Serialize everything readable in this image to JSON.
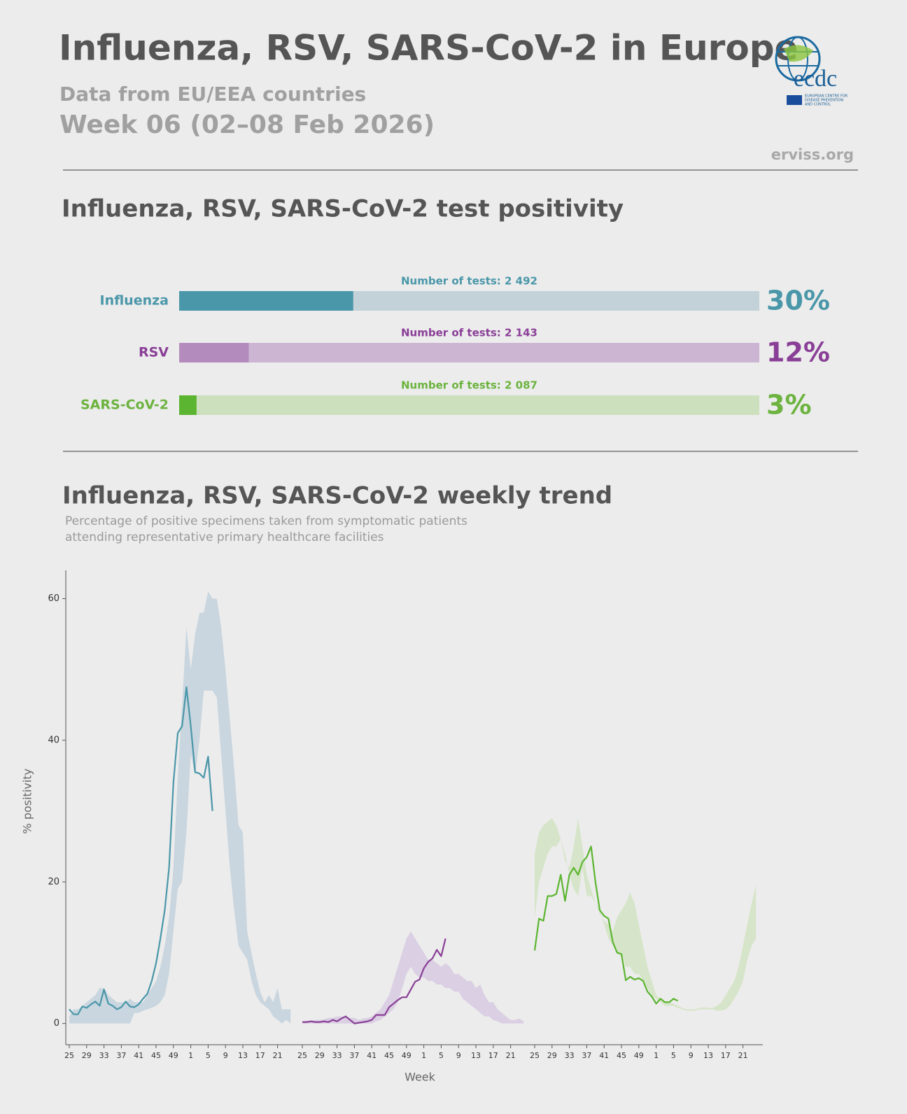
{
  "header": {
    "title": "Influenza, RSV, SARS-CoV-2 in Europe",
    "subtitle": "Data from EU/EEA countries",
    "week": "Week 06 (02–08 Feb 2026)",
    "source": "erviss.org",
    "logo_name": "ecdc",
    "logo_caption": [
      "EUROPEAN CENTRE FOR",
      "DISEASE PREVENTION",
      "AND CONTROL"
    ]
  },
  "chart_data": [
    {
      "type": "hbar",
      "title": "Influenza, RSV, SARS-CoV-2 test positivity",
      "categories": [
        "Influenza",
        "RSV",
        "SARS-CoV-2"
      ],
      "values": [
        30,
        12,
        3
      ],
      "value_labels": [
        "30%",
        "12%",
        "3%"
      ],
      "annotations": [
        "Number of tests: 2 492",
        "Number of tests: 2 143",
        "Number of tests: 2 087"
      ],
      "colors": [
        "#4a97a9",
        "#b48bbd",
        "#5cb531"
      ],
      "label_colors": [
        "#4a97a9",
        "#8a3f97",
        "#6cb33f"
      ],
      "track_colors": [
        "#c3d1d9",
        "#cbb5d3",
        "#cde0bd"
      ],
      "xlim": [
        0,
        100
      ]
    },
    {
      "type": "line",
      "title": "Influenza, RSV, SARS-CoV-2 weekly trend",
      "subtitle": [
        "Percentage of positive specimens taken from symptomatic patients",
        "attending representative primary healthcare facilities"
      ],
      "xlabel": "Week",
      "ylabel": "% positivity",
      "categories": [
        25,
        null,
        null,
        null,
        29,
        null,
        null,
        null,
        33,
        null,
        null,
        null,
        37,
        null,
        null,
        null,
        41,
        null,
        null,
        null,
        45,
        null,
        null,
        null,
        49,
        null,
        null,
        null,
        1,
        null,
        null,
        null,
        5,
        null,
        null,
        null,
        9,
        null,
        null,
        null,
        13,
        null,
        null,
        null,
        17,
        null,
        null,
        null,
        21,
        null,
        null,
        null
      ],
      "ylim": [
        -3,
        64
      ],
      "yticks": [
        0,
        20,
        40,
        60
      ],
      "series": [
        {
          "color": "#4a97a9",
          "band_color": "#c9d6df",
          "values": [
            2,
            1.3,
            1.3,
            2.4,
            2.2,
            2.7,
            3.1,
            2.5,
            4.8,
            2.8,
            2.5,
            2,
            2.3,
            3.1,
            2.4,
            2.3,
            2.7,
            3.5,
            4.2,
            6,
            8.5,
            12,
            16,
            22,
            34,
            41,
            42,
            47.5,
            42,
            35.5,
            35.3,
            34.7,
            37.7,
            30,
            null,
            null,
            null,
            null,
            null,
            null,
            null,
            null,
            null,
            null,
            null,
            null,
            null,
            null,
            null,
            null,
            null,
            null
          ],
          "band_lower": [
            0,
            0,
            0,
            0,
            0,
            0,
            0,
            0,
            0,
            0,
            0,
            0,
            0,
            0,
            0,
            1.5,
            1.5,
            1.8,
            2,
            2.2,
            2.5,
            3,
            4,
            7,
            13,
            19,
            20,
            27,
            38,
            35,
            40,
            47,
            47,
            47,
            46,
            38,
            30,
            22,
            16,
            11,
            10,
            9,
            6,
            4,
            3,
            2.5,
            2,
            1,
            0.5,
            0,
            0.5,
            0
          ],
          "band_upper": [
            1,
            2,
            2,
            2.5,
            3,
            3.5,
            4,
            5,
            5,
            4,
            3.5,
            3,
            3,
            3,
            3.5,
            3,
            3,
            3,
            4,
            5,
            6,
            8,
            11,
            15,
            22,
            35,
            45,
            56,
            50,
            55,
            58,
            58,
            61,
            60,
            60,
            56,
            50,
            43,
            36,
            28,
            27,
            13,
            10,
            7,
            4.5,
            3,
            4,
            3,
            5,
            2,
            2,
            2
          ]
        },
        {
          "color": "#8a3f97",
          "band_color": "#dacfe3",
          "values": [
            0.2,
            0.2,
            0.3,
            0.2,
            0.2,
            0.3,
            0.2,
            0.5,
            0.3,
            0.7,
            1,
            0.5,
            0,
            0.1,
            0.2,
            0.3,
            0.5,
            1.2,
            1.2,
            1.2,
            2.3,
            2.8,
            3.3,
            3.7,
            3.7,
            4.8,
            5.9,
            6.2,
            7.8,
            8.7,
            9.2,
            10.4,
            9.5,
            12,
            null,
            null,
            null,
            null,
            null,
            null,
            null,
            null,
            null,
            null,
            null,
            null,
            null,
            null,
            null,
            null,
            null,
            null
          ],
          "band_lower": [
            0,
            0,
            0,
            0,
            0,
            0,
            0,
            0,
            0,
            0,
            0,
            0,
            0,
            0,
            0,
            0,
            0,
            0.3,
            0.5,
            1,
            1.5,
            2,
            3,
            5,
            7,
            8,
            7,
            6.5,
            6.5,
            6,
            6,
            5.5,
            5.5,
            5,
            5,
            4.5,
            4.5,
            3.5,
            3,
            2.5,
            2,
            1.5,
            1,
            1,
            0.5,
            0.3,
            0,
            0,
            0,
            0,
            0,
            0
          ],
          "band_upper": [
            0.3,
            0.4,
            0.4,
            0.5,
            0.5,
            0.6,
            0.8,
            0.8,
            1,
            1,
            1,
            0.8,
            0.8,
            0.5,
            0.7,
            0.8,
            1,
            1.5,
            2,
            3,
            4,
            6,
            8,
            10,
            12,
            13,
            12,
            11,
            10,
            9,
            9,
            8.5,
            8,
            8.5,
            8,
            7,
            7,
            6.5,
            6,
            6,
            5,
            5.5,
            4,
            3,
            3,
            2,
            1.5,
            1,
            0.5,
            0.5,
            0.7,
            0.3
          ]
        },
        {
          "color": "#5cb531",
          "band_color": "#d6e5c9",
          "values": [
            10.3,
            14.8,
            14.5,
            18,
            18,
            18.3,
            21,
            17.3,
            21,
            22,
            21,
            22.8,
            23.5,
            25,
            20,
            16,
            15.2,
            14.8,
            11.5,
            10,
            9.8,
            6.1,
            6.6,
            6.2,
            6.4,
            6,
            4.5,
            3.8,
            2.8,
            3.5,
            3,
            3,
            3.5,
            3.2,
            null,
            null,
            null,
            null,
            null,
            null,
            null,
            null,
            null,
            null,
            null,
            null,
            null,
            null,
            null,
            null,
            null,
            null
          ],
          "band_lower": [
            15,
            20,
            22,
            24,
            25,
            25,
            26,
            24,
            21,
            19,
            18,
            22,
            18,
            18,
            17,
            16,
            14,
            12,
            11,
            10,
            10,
            8,
            8,
            7,
            7,
            6,
            5,
            4,
            3.5,
            3,
            2.5,
            2.5,
            2.5,
            2.2,
            2,
            1.8,
            1.8,
            1.8,
            2,
            2,
            2,
            2,
            1.8,
            1.8,
            2,
            2.5,
            3.5,
            4.5,
            6,
            9,
            11,
            12
          ],
          "band_upper": [
            24,
            27,
            28,
            28.5,
            29,
            28,
            26,
            23,
            22,
            25,
            29,
            25,
            21,
            19,
            17,
            15.5,
            14.5,
            14,
            13,
            15,
            16,
            17,
            18.5,
            17,
            14,
            11,
            8,
            6,
            4,
            3.5,
            3,
            3,
            2.8,
            2.5,
            2.2,
            2,
            2,
            2,
            2.2,
            2.3,
            2.2,
            2.2,
            2.5,
            3,
            4,
            5,
            6,
            8,
            11,
            14,
            17,
            19.5
          ]
        }
      ]
    }
  ]
}
